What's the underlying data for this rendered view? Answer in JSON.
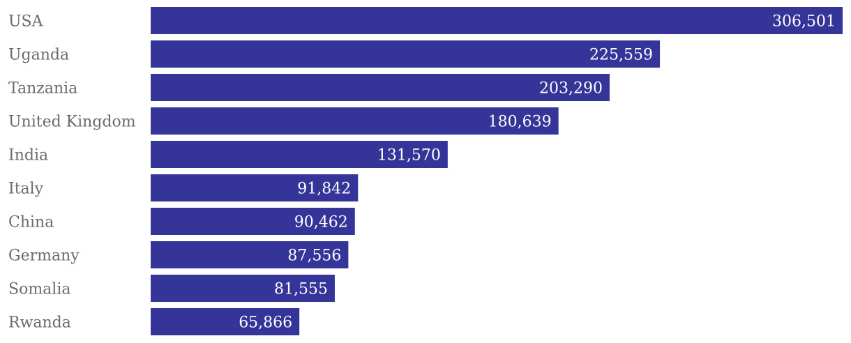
{
  "chart_data": {
    "type": "bar",
    "orientation": "horizontal",
    "categories": [
      "USA",
      "Uganda",
      "Tanzania",
      "United Kingdom",
      "India",
      "Italy",
      "China",
      "Germany",
      "Somalia",
      "Rwanda"
    ],
    "values": [
      306501,
      225559,
      203290,
      180639,
      131570,
      91842,
      90462,
      87556,
      81555,
      65866
    ],
    "value_labels": [
      "306,501",
      "225,559",
      "203,290",
      "180,639",
      "131,570",
      "91,842",
      "90,462",
      "87,556",
      "81,555",
      "65,866"
    ],
    "bar_color": "#353599",
    "grid": false,
    "legend": "none"
  }
}
